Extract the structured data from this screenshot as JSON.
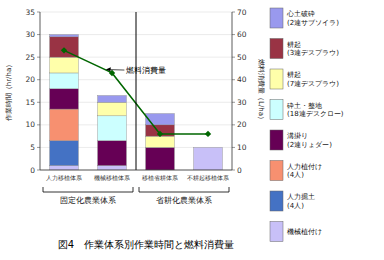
{
  "chart_data": {
    "type": "bar",
    "stacked": true,
    "title": "図4　作業体系別作業時間と燃料消費量",
    "categories": [
      "人力移植体系",
      "機械移植体系",
      "移植省耕体系",
      "不耕起移植体系"
    ],
    "annotations": [
      "固定化農業体系",
      "省耕化農業体系"
    ],
    "series": [
      {
        "name": "機械植付け",
        "color": "#c8c0f8",
        "values": [
          1.0,
          1.0,
          0.0,
          5.0
        ]
      },
      {
        "name": "人力掘土\n(4人)",
        "color": "#4472c4",
        "values": [
          5.5,
          0.0,
          0.0,
          0.0
        ]
      },
      {
        "name": "人力植付け\n(4人)",
        "color": "#f79070",
        "values": [
          7.0,
          0.0,
          0.0,
          0.0
        ]
      },
      {
        "name": "溝掛り\n(2連りょダー)",
        "color": "#660055",
        "values": [
          4.5,
          5.5,
          5.0,
          0.0
        ]
      },
      {
        "name": "砕土・整地\n(18連デスクロー)",
        "color": "#ccffff",
        "values": [
          3.5,
          5.5,
          0.0,
          0.0
        ]
      },
      {
        "name": "耕起\n(7連デスプラウ)",
        "color": "#ffffaa",
        "values": [
          3.5,
          3.0,
          2.5,
          0.0
        ]
      },
      {
        "name": "耕起\n(3連デスプラウ)",
        "color": "#993344",
        "values": [
          4.5,
          0.0,
          2.5,
          0.0
        ]
      },
      {
        "name": "心土破砕\n(2連サブソイラ)",
        "color": "#9999ee",
        "values": [
          0.5,
          1.5,
          2.5,
          0.0
        ]
      },
      {
        "name": "燃料消費量",
        "type": "line",
        "axis": "y2",
        "marker": "diamond",
        "color": "#006600",
        "values": [
          53,
          43,
          16,
          16
        ]
      }
    ],
    "ylabel": "作業時間（hr/ha）",
    "y2label": "燃料消費量（L/ha）",
    "ylim": [
      0,
      35
    ],
    "yticks": [
      0,
      5,
      10,
      15,
      20,
      25,
      30,
      35
    ],
    "y2lim": [
      0,
      70
    ],
    "y2ticks": [
      0,
      10,
      20,
      30,
      40,
      50,
      60,
      70
    ],
    "grid": true,
    "legend": "right"
  }
}
